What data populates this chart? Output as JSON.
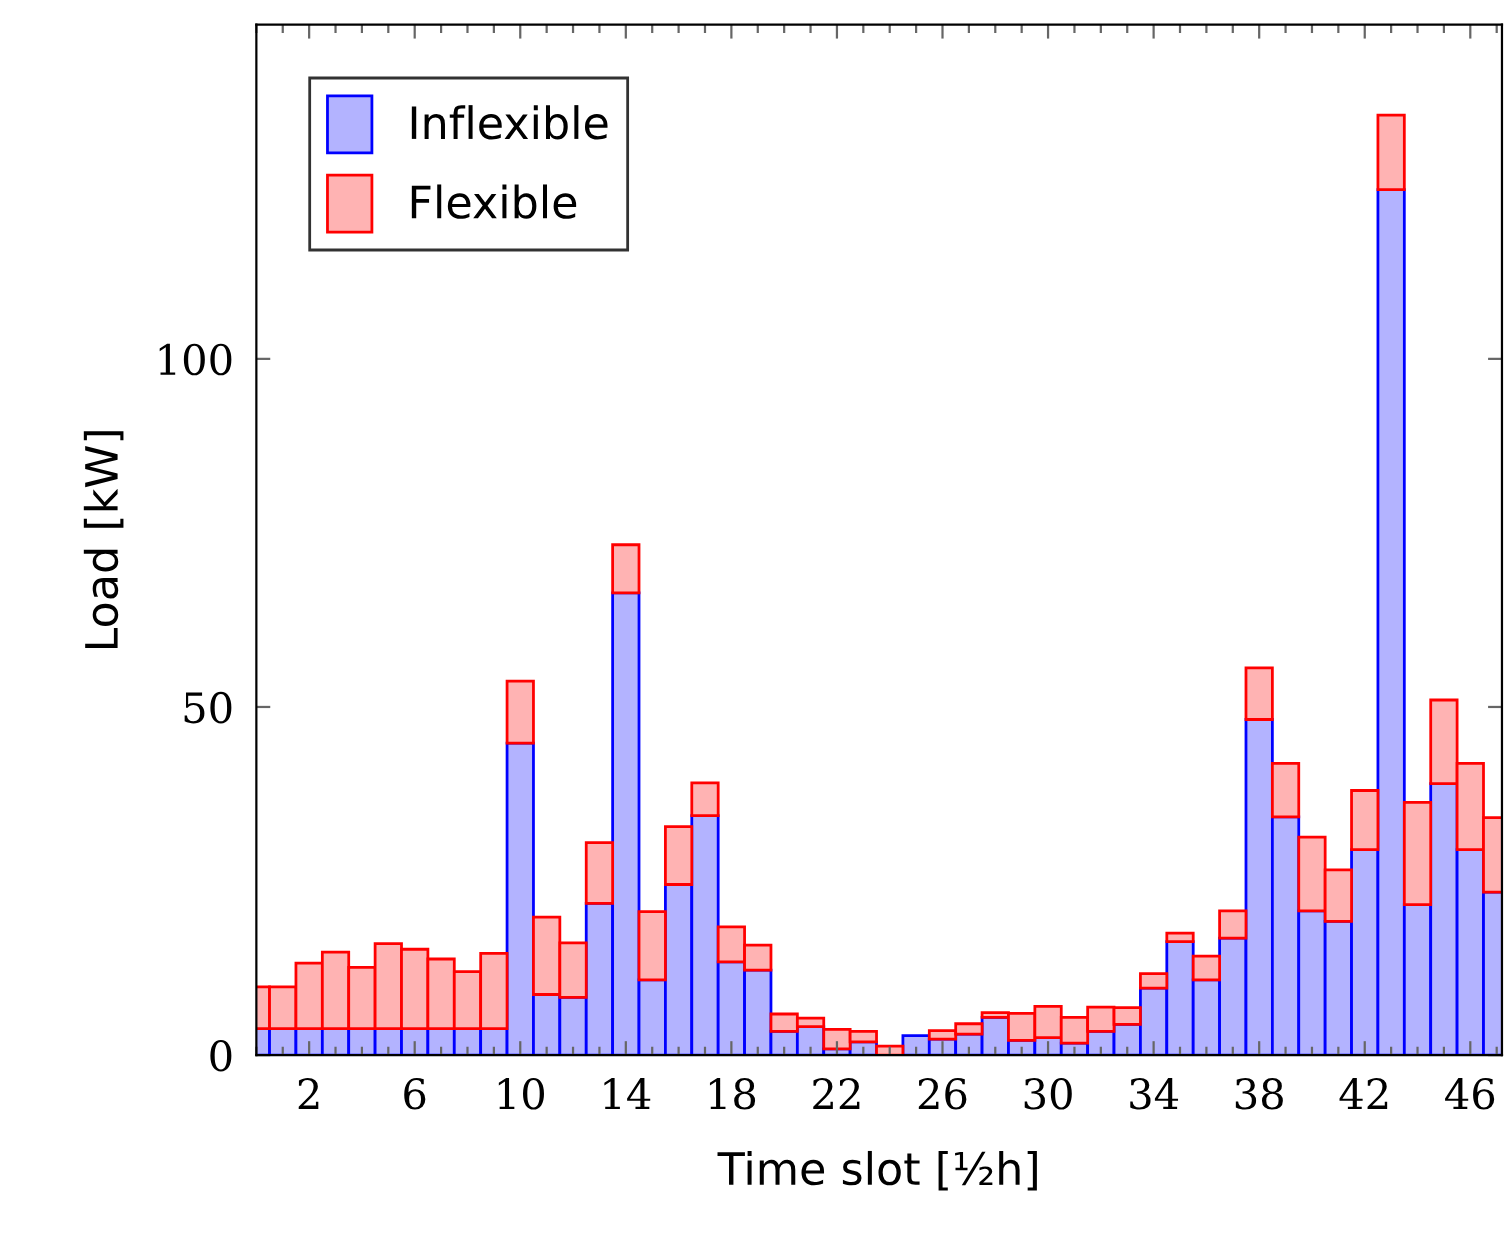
{
  "chart_data": {
    "type": "bar",
    "stacked": true,
    "xlabel": "Time slot [½h]",
    "ylabel": "Load [kW]",
    "x": [
      0,
      1,
      2,
      3,
      4,
      5,
      6,
      7,
      8,
      9,
      10,
      11,
      12,
      13,
      14,
      15,
      16,
      17,
      18,
      19,
      20,
      21,
      22,
      23,
      24,
      25,
      26,
      27,
      28,
      29,
      30,
      31,
      32,
      33,
      34,
      35,
      36,
      37,
      38,
      39,
      40,
      41,
      42,
      43,
      44,
      45,
      46,
      47
    ],
    "series": [
      {
        "name": "Inflexible",
        "color": "#b3b3ff",
        "values": [
          3.8,
          3.8,
          3.8,
          3.8,
          3.8,
          3.8,
          3.8,
          3.8,
          3.8,
          3.8,
          44.8,
          8.7,
          8.3,
          21.8,
          66.4,
          10.8,
          24.5,
          34.4,
          13.4,
          12.2,
          3.4,
          4.1,
          0.9,
          1.9,
          null,
          2.8,
          2.3,
          3.0,
          5.4,
          2.1,
          2.5,
          1.7,
          3.4,
          4.4,
          9.6,
          16.3,
          10.8,
          16.8,
          48.2,
          34.2,
          20.7,
          19.2,
          29.5,
          124.3,
          21.6,
          39.0,
          29.5,
          23.4
        ]
      },
      {
        "name": "Flexible",
        "color": "#ffb3b3",
        "values": [
          6.0,
          6.0,
          9.4,
          11.0,
          8.8,
          12.2,
          11.4,
          10.0,
          8.2,
          10.8,
          8.9,
          11.1,
          7.8,
          8.7,
          6.9,
          9.8,
          8.3,
          4.7,
          5.0,
          3.6,
          2.5,
          1.2,
          2.8,
          1.5,
          1.3,
          null,
          1.2,
          1.5,
          0.7,
          3.9,
          4.5,
          3.7,
          3.5,
          2.4,
          2.1,
          1.2,
          3.4,
          3.9,
          7.4,
          7.7,
          10.6,
          7.4,
          8.5,
          10.7,
          14.7,
          12.0,
          12.4,
          10.7
        ]
      }
    ],
    "xlim": [
      0,
      47.2
    ],
    "ylim": [
      0,
      148
    ],
    "xticks": [
      {
        "value": 0,
        "label": null
      },
      {
        "value": 1,
        "label": null
      },
      2,
      {
        "value": 3,
        "label": null
      },
      {
        "value": 4,
        "label": null
      },
      {
        "value": 5,
        "label": null
      },
      6,
      {
        "value": 7,
        "label": null
      },
      {
        "value": 8,
        "label": null
      },
      {
        "value": 9,
        "label": null
      },
      10,
      {
        "value": 11,
        "label": null
      },
      {
        "value": 12,
        "label": null
      },
      {
        "value": 13,
        "label": null
      },
      14,
      {
        "value": 15,
        "label": null
      },
      {
        "value": 16,
        "label": null
      },
      {
        "value": 17,
        "label": null
      },
      18,
      {
        "value": 19,
        "label": null
      },
      {
        "value": 20,
        "label": null
      },
      {
        "value": 21,
        "label": null
      },
      22,
      {
        "value": 23,
        "label": null
      },
      {
        "value": 24,
        "label": null
      },
      {
        "value": 25,
        "label": null
      },
      26,
      {
        "value": 27,
        "label": null
      },
      {
        "value": 28,
        "label": null
      },
      {
        "value": 29,
        "label": null
      },
      30,
      {
        "value": 31,
        "label": null
      },
      {
        "value": 32,
        "label": null
      },
      {
        "value": 33,
        "label": null
      },
      34,
      {
        "value": 35,
        "label": null
      },
      {
        "value": 36,
        "label": null
      },
      {
        "value": 37,
        "label": null
      },
      38,
      {
        "value": 39,
        "label": null
      },
      {
        "value": 40,
        "label": null
      },
      {
        "value": 41,
        "label": null
      },
      42,
      {
        "value": 43,
        "label": null
      },
      {
        "value": 44,
        "label": null
      },
      {
        "value": 45,
        "label": null
      },
      46,
      {
        "value": 47,
        "label": null
      }
    ],
    "yticks": [
      0,
      50,
      100
    ],
    "legend": "top left",
    "grid": false
  }
}
